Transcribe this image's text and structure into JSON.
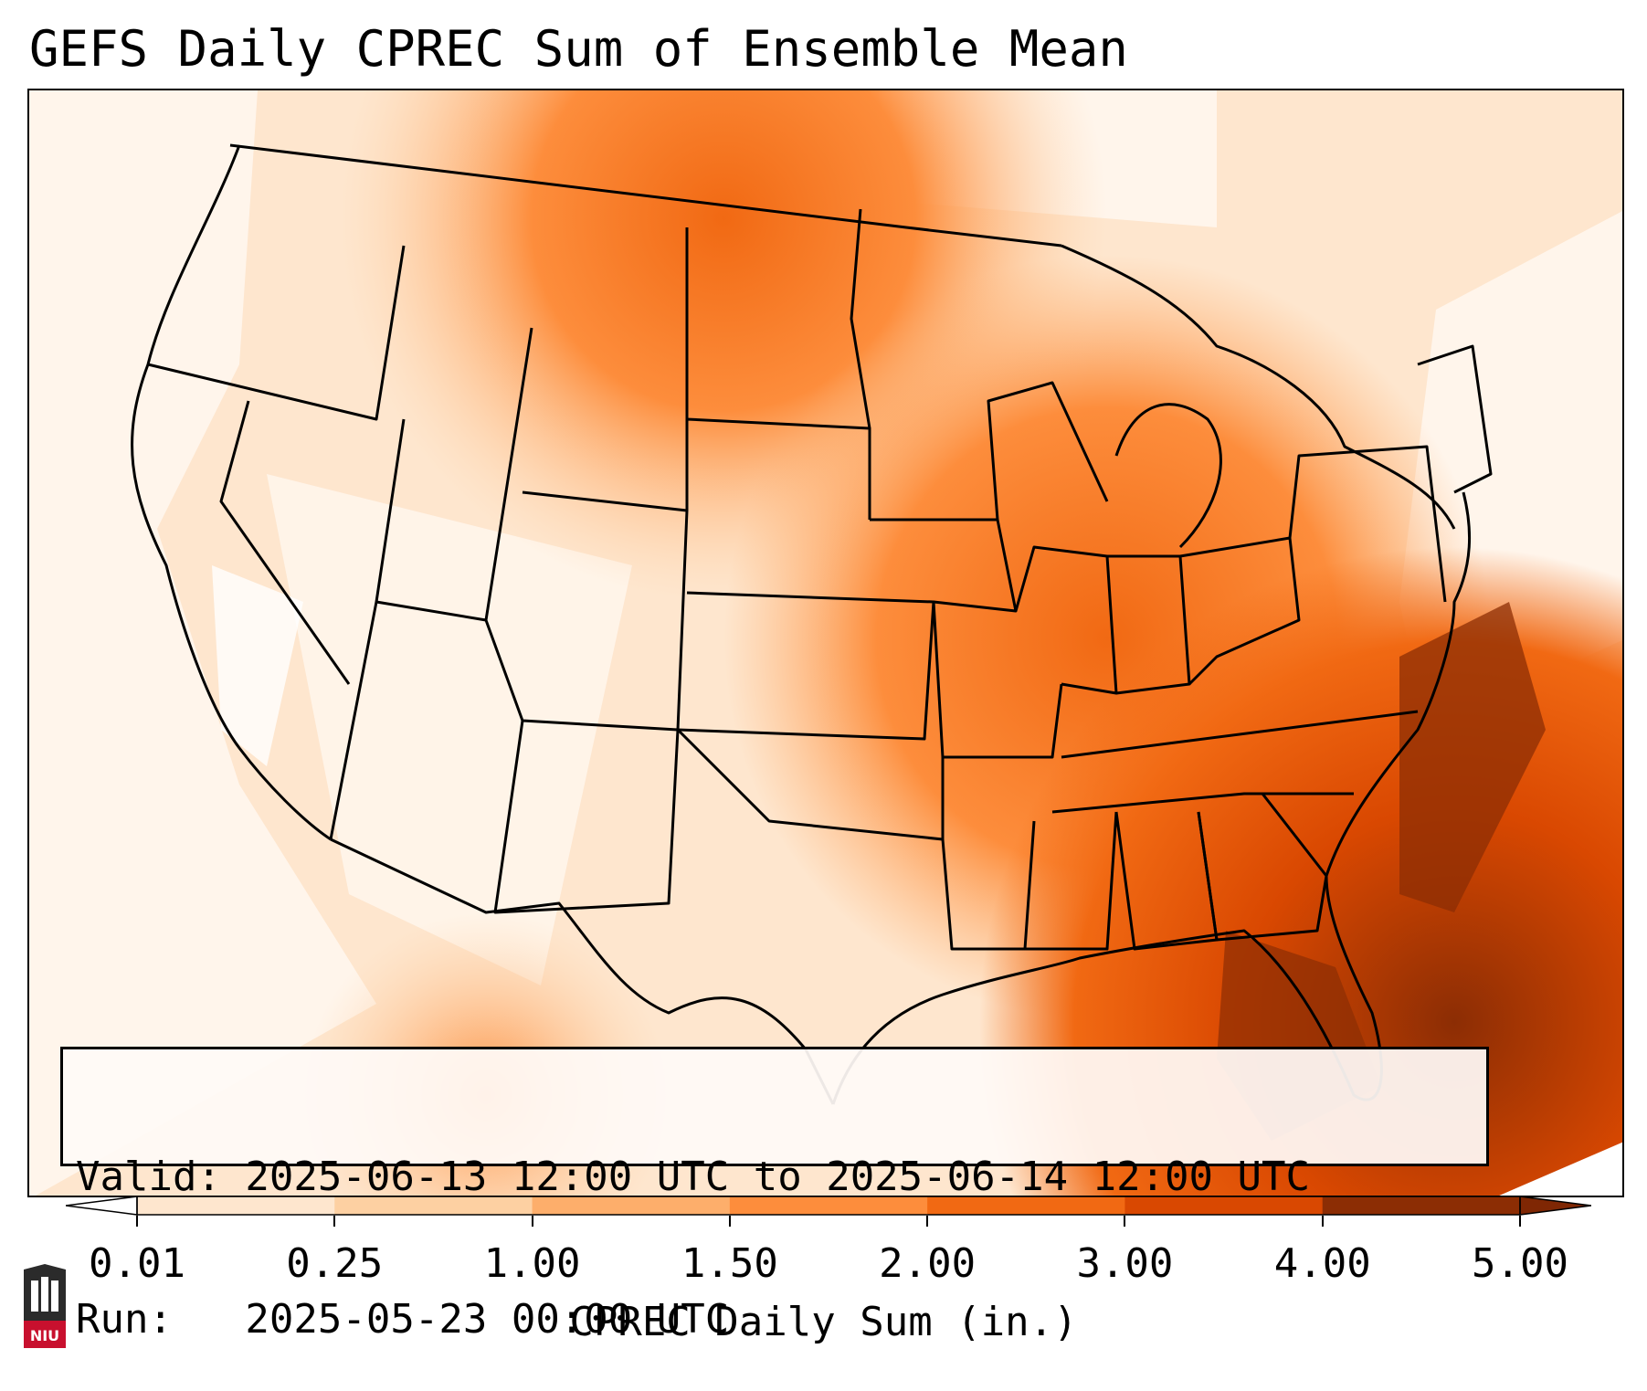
{
  "title": "GEFS Daily CPREC Sum of Ensemble Mean",
  "info": {
    "valid_line": "Valid: 2025-06-13 12:00 UTC to 2025-06-14 12:00 UTC",
    "run_line": "Run:   2025-05-23 00:00 UTC"
  },
  "colorbar": {
    "label": "CPREC Daily Sum (in.)",
    "ticks": [
      "0.01",
      "0.25",
      "1.00",
      "1.50",
      "2.00",
      "3.00",
      "4.00",
      "5.00"
    ],
    "colors": [
      "#fff5eb",
      "#fee6ce",
      "#fdd0a2",
      "#fdae6b",
      "#fd8d3c",
      "#f16913",
      "#d94801",
      "#8c2d04"
    ],
    "under_color": "#ffffff",
    "over_color": "#7f2704"
  },
  "map": {
    "region": "Contiguous United States",
    "field": "CPREC daily sum (ensemble mean)",
    "heaviest_area": "Southeast U.S., Florida and western Atlantic"
  },
  "logo": {
    "text": "NIU",
    "icon": "niu-university-logo-icon"
  }
}
